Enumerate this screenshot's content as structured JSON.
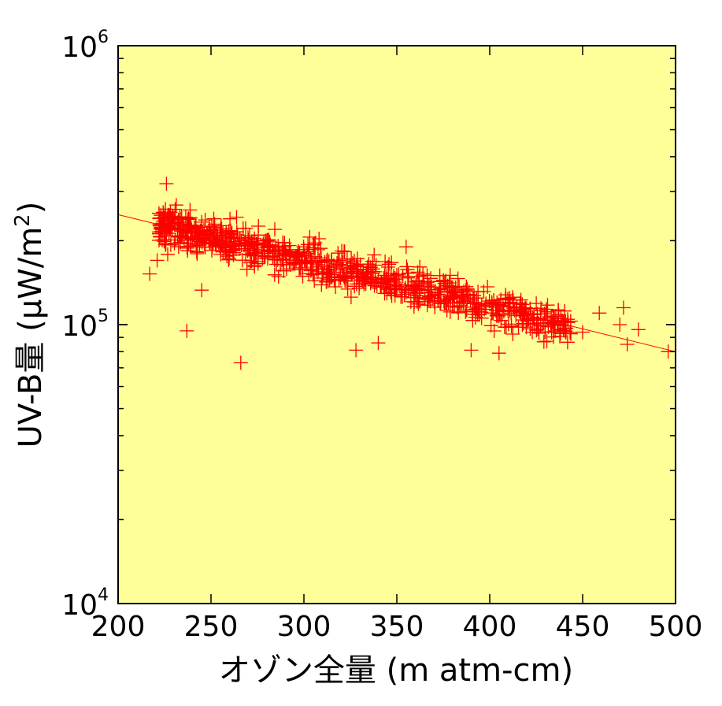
{
  "chart_data": {
    "type": "scatter",
    "xlabel": "オゾン全量 (m atm-cm)",
    "ylabel_main": "UV-B量 (μW/m",
    "ylabel_sup": "2",
    "ylabel_close": ")",
    "xlim": [
      200,
      500
    ],
    "ylim": [
      10000,
      1000000
    ],
    "yscale": "log",
    "x_ticks": [
      200,
      250,
      300,
      350,
      400,
      450,
      500
    ],
    "x_tick_labels": [
      "200",
      "250",
      "300",
      "350",
      "400",
      "450",
      "500"
    ],
    "y_ticks": [
      10000,
      100000,
      1000000
    ],
    "y_tick_labels": [
      {
        "base": "10",
        "exp": "4"
      },
      {
        "base": "10",
        "exp": "5"
      },
      {
        "base": "10",
        "exp": "6"
      }
    ],
    "grid": false,
    "colors": {
      "plot_background": "#FFFF99",
      "marker": "#FF0000",
      "trend_line": "#FF0000"
    },
    "marker": "+",
    "trend_line": {
      "x": [
        200,
        500
      ],
      "y": [
        248000,
        80000
      ]
    },
    "trend_formula": {
      "a": 248000,
      "x0": 200,
      "decay_per_unit": 0.003773
    },
    "point_count": 900,
    "outliers": [
      {
        "x": 217,
        "y": 152000
      },
      {
        "x": 221,
        "y": 170000
      },
      {
        "x": 237,
        "y": 95000
      },
      {
        "x": 266,
        "y": 73000
      },
      {
        "x": 245,
        "y": 133000
      },
      {
        "x": 328,
        "y": 81000
      },
      {
        "x": 340,
        "y": 86000
      },
      {
        "x": 390,
        "y": 81000
      },
      {
        "x": 405,
        "y": 79000
      },
      {
        "x": 226,
        "y": 320000
      },
      {
        "x": 496,
        "y": 80000
      },
      {
        "x": 474,
        "y": 85000
      },
      {
        "x": 480,
        "y": 96000
      },
      {
        "x": 472,
        "y": 115000
      },
      {
        "x": 459,
        "y": 110000
      },
      {
        "x": 450,
        "y": 94000
      },
      {
        "x": 470,
        "y": 100000
      },
      {
        "x": 355,
        "y": 190000
      }
    ]
  }
}
